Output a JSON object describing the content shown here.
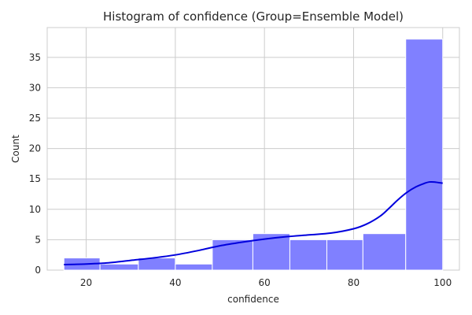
{
  "chart_data": {
    "type": "histogram",
    "title": "Histogram of confidence (Group=Ensemble Model)",
    "xlabel": "confidence",
    "ylabel": "Count",
    "xlim": [
      11.25,
      103.75
    ],
    "ylim": [
      0,
      39.9
    ],
    "xticks": [
      20,
      40,
      60,
      80,
      100
    ],
    "yticks": [
      0,
      5,
      10,
      15,
      20,
      25,
      30,
      35
    ],
    "grid": true,
    "bins": [
      {
        "x0": 15.0,
        "x1": 23.1,
        "count": 2
      },
      {
        "x0": 23.1,
        "x1": 31.7,
        "count": 1
      },
      {
        "x0": 31.7,
        "x1": 40.0,
        "count": 2
      },
      {
        "x0": 40.0,
        "x1": 48.3,
        "count": 1
      },
      {
        "x0": 48.3,
        "x1": 57.4,
        "count": 5
      },
      {
        "x0": 57.4,
        "x1": 65.7,
        "count": 6
      },
      {
        "x0": 65.7,
        "x1": 74.0,
        "count": 5
      },
      {
        "x0": 74.0,
        "x1": 82.1,
        "count": 5
      },
      {
        "x0": 82.1,
        "x1": 91.7,
        "count": 6
      },
      {
        "x0": 91.7,
        "x1": 100.0,
        "count": 38
      }
    ],
    "kde": [
      [
        15,
        0.9
      ],
      [
        20,
        1.0
      ],
      [
        25,
        1.2
      ],
      [
        30,
        1.6
      ],
      [
        35,
        2.0
      ],
      [
        40,
        2.5
      ],
      [
        45,
        3.2
      ],
      [
        50,
        4.0
      ],
      [
        55,
        4.6
      ],
      [
        60,
        5.1
      ],
      [
        65,
        5.5
      ],
      [
        70,
        5.8
      ],
      [
        75,
        6.1
      ],
      [
        80,
        6.8
      ],
      [
        83,
        7.6
      ],
      [
        86,
        8.9
      ],
      [
        88,
        10.2
      ],
      [
        90,
        11.6
      ],
      [
        92,
        12.8
      ],
      [
        94,
        13.7
      ],
      [
        96,
        14.3
      ],
      [
        97,
        14.5
      ],
      [
        98,
        14.5
      ],
      [
        99,
        14.4
      ],
      [
        100,
        14.3
      ]
    ],
    "bar_color": "#8080ff",
    "bar_edge_color": "#ffffff",
    "kde_color": "#0000dd"
  }
}
